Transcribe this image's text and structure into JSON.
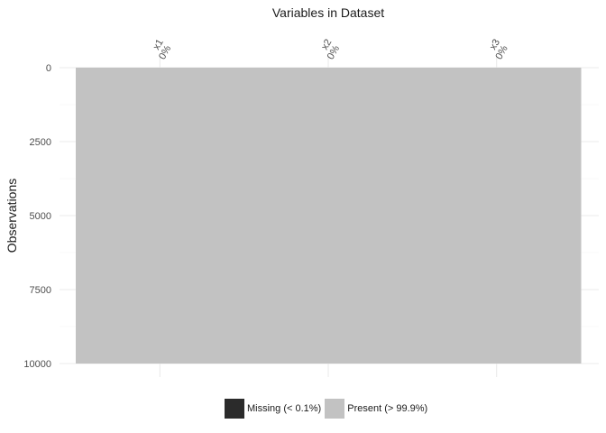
{
  "chart_data": {
    "type": "heatmap",
    "title": "",
    "xlabel": "Variables in Dataset",
    "ylabel": "Observations",
    "ylim": [
      0,
      10000
    ],
    "y_reversed": true,
    "y_ticks": [
      "0",
      "2500",
      "5000",
      "7500",
      "10000"
    ],
    "y_tick_values": [
      0,
      2500,
      5000,
      7500,
      10000
    ],
    "x_position": "top",
    "variables": [
      {
        "name": "x1",
        "missing_label": "0%",
        "missing_count": 0
      },
      {
        "name": "x2",
        "missing_label": "0%",
        "missing_count": 0
      },
      {
        "name": "x3",
        "missing_label": "0%",
        "missing_count": 0
      }
    ],
    "n_observations": 10000,
    "legend": [
      {
        "label": "Missing (< 0.1%)",
        "color": "#2b2b2b"
      },
      {
        "label": "Present (> 99.9%)",
        "color": "#c2c2c2"
      }
    ],
    "legend_position": "bottom",
    "grid": true,
    "colors": {
      "present": "#c2c2c2",
      "missing": "#2b2b2b",
      "grid": "#ebebeb",
      "text": "#4d4d4d"
    }
  }
}
